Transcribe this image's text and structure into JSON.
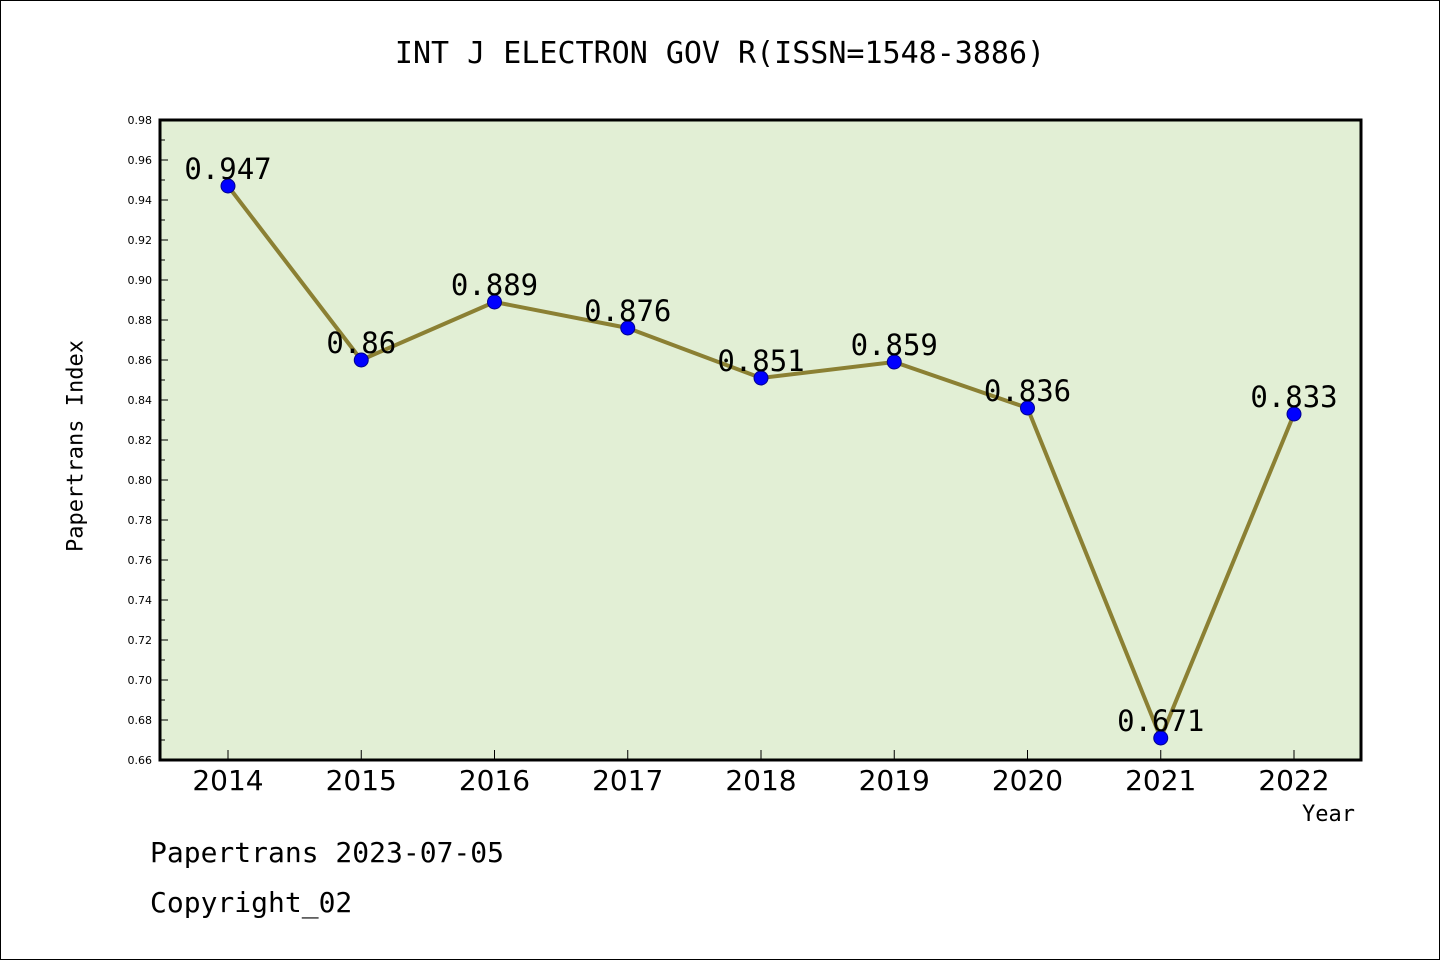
{
  "chart_data": {
    "type": "line",
    "title": "INT J ELECTRON GOV R(ISSN=1548-3886)",
    "xlabel": "Year",
    "ylabel": "Papertrans Index",
    "x": [
      "2014",
      "2015",
      "2016",
      "2017",
      "2018",
      "2019",
      "2020",
      "2021",
      "2022"
    ],
    "series": [
      {
        "values": [
          0.947,
          0.86,
          0.889,
          0.876,
          0.851,
          0.859,
          0.836,
          0.671,
          0.833
        ],
        "data_labels": [
          "0.947",
          "0.86",
          "0.889",
          "0.876",
          "0.851",
          "0.859",
          "0.836",
          "0.671",
          "0.833"
        ]
      }
    ],
    "ylim": [
      0.66,
      0.98
    ],
    "yticks": [
      "0.66",
      "0.68",
      "0.70",
      "0.72",
      "0.74",
      "0.76",
      "0.78",
      "0.80",
      "0.82",
      "0.84",
      "0.86",
      "0.88",
      "0.90",
      "0.92",
      "0.94",
      "0.96",
      "0.98"
    ],
    "grid": false,
    "colors": {
      "plot_background": "#e2efd5",
      "line": "#8b8033",
      "marker": "#0000ff"
    }
  },
  "footer": {
    "line1": "Papertrans 2023-07-05",
    "line2": "Copyright_02"
  }
}
